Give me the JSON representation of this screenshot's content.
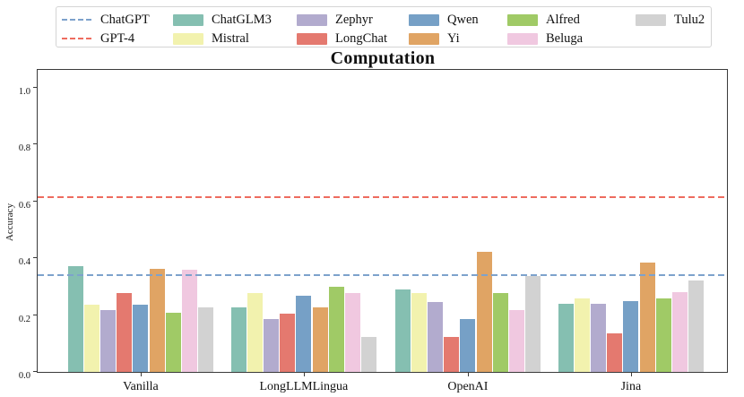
{
  "chart_data": {
    "type": "bar",
    "title": "Computation",
    "ylabel": "Accuracy",
    "xlabel": "",
    "categories": [
      "Vanilla",
      "LongLLMLingua",
      "OpenAI",
      "Jina"
    ],
    "yticks": [
      "0.0",
      "0.2",
      "0.4",
      "0.6",
      "0.8",
      "1.0"
    ],
    "ylim": [
      0.0,
      1.065
    ],
    "grid": false,
    "legend_position": "top",
    "series": [
      {
        "name": "ChatGLM3",
        "color": "#85bfb1",
        "values": [
          0.372,
          0.228,
          0.29,
          0.238
        ]
      },
      {
        "name": "Mistral",
        "color": "#f2f2ae",
        "values": [
          0.237,
          0.278,
          0.278,
          0.257
        ]
      },
      {
        "name": "Zephyr",
        "color": "#b2abce",
        "values": [
          0.216,
          0.185,
          0.247,
          0.238
        ]
      },
      {
        "name": "LongChat",
        "color": "#e4796f",
        "values": [
          0.278,
          0.206,
          0.123,
          0.134
        ]
      },
      {
        "name": "Qwen",
        "color": "#76a0c6",
        "values": [
          0.237,
          0.267,
          0.186,
          0.249
        ]
      },
      {
        "name": "Yi",
        "color": "#e0a464",
        "values": [
          0.362,
          0.228,
          0.423,
          0.383
        ]
      },
      {
        "name": "Alfred",
        "color": "#a0ca66",
        "values": [
          0.207,
          0.298,
          0.278,
          0.257
        ]
      },
      {
        "name": "Beluga",
        "color": "#f0c8e0",
        "values": [
          0.358,
          0.278,
          0.216,
          0.279
        ]
      },
      {
        "name": "Tulu2",
        "color": "#d2d2d2",
        "values": [
          0.227,
          0.123,
          0.338,
          0.32
        ]
      }
    ],
    "hlines": [
      {
        "name": "ChatGPT",
        "color": "#7da2cc",
        "value": 0.34,
        "style": "dashed"
      },
      {
        "name": "GPT-4",
        "color": "#ee6c5f",
        "value": 0.614,
        "style": "dashed"
      }
    ]
  },
  "legend": {
    "rows": [
      [
        "ChatGPT",
        "ChatGLM3",
        "Zephyr",
        "Qwen",
        "Alfred",
        "Tulu2"
      ],
      [
        "GPT-4",
        "Mistral",
        "LongChat",
        "Yi",
        "Beluga"
      ]
    ]
  }
}
